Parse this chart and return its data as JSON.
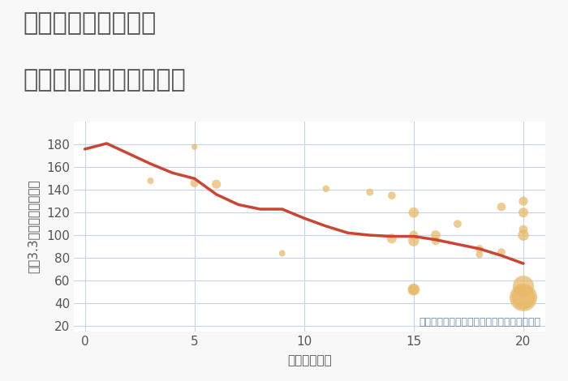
{
  "title_line1": "埼玉県八潮市緑町の",
  "title_line2": "駅距離別中古戸建て価格",
  "xlabel": "駅距離（分）",
  "ylabel": "坪（3.3㎡）単価（万円）",
  "annotation": "円の大きさは、取引のあった物件面積を示す",
  "background_color": "#f8f8f8",
  "plot_bg_color": "#ffffff",
  "grid_color": "#c5d5e5",
  "line_color": "#cc4433",
  "scatter_color": "#e8b865",
  "scatter_alpha": 0.72,
  "line_x": [
    0,
    1,
    2,
    3,
    4,
    5,
    6,
    7,
    8,
    9,
    10,
    11,
    12,
    13,
    14,
    15,
    16,
    17,
    18,
    19,
    20
  ],
  "line_y": [
    176,
    181,
    172,
    163,
    155,
    150,
    136,
    127,
    123,
    123,
    115,
    108,
    102,
    100,
    99,
    99,
    96,
    92,
    88,
    82,
    75
  ],
  "scatter_x": [
    3,
    5,
    5,
    6,
    9,
    11,
    13,
    14,
    14,
    15,
    15,
    15,
    15,
    15,
    16,
    16,
    17,
    18,
    18,
    19,
    19,
    20,
    20,
    20,
    20,
    20,
    20,
    20
  ],
  "scatter_y": [
    148,
    178,
    146,
    145,
    84,
    141,
    138,
    135,
    97,
    120,
    95,
    52,
    52,
    100,
    95,
    100,
    110,
    83,
    88,
    125,
    85,
    130,
    120,
    105,
    45,
    45,
    55,
    100
  ],
  "scatter_size": [
    35,
    28,
    55,
    65,
    32,
    38,
    42,
    48,
    75,
    85,
    95,
    115,
    85,
    65,
    55,
    75,
    50,
    42,
    48,
    58,
    50,
    65,
    75,
    60,
    600,
    450,
    350,
    95
  ],
  "xlim": [
    -0.5,
    21
  ],
  "ylim": [
    15,
    200
  ],
  "xticks": [
    0,
    5,
    10,
    15,
    20
  ],
  "yticks": [
    20,
    40,
    60,
    80,
    100,
    120,
    140,
    160,
    180
  ],
  "title_fontsize": 22,
  "label_fontsize": 11,
  "tick_fontsize": 11,
  "annot_fontsize": 9,
  "line_width": 2.5,
  "title_color": "#555555",
  "tick_color": "#555555",
  "annot_color": "#6688aa"
}
